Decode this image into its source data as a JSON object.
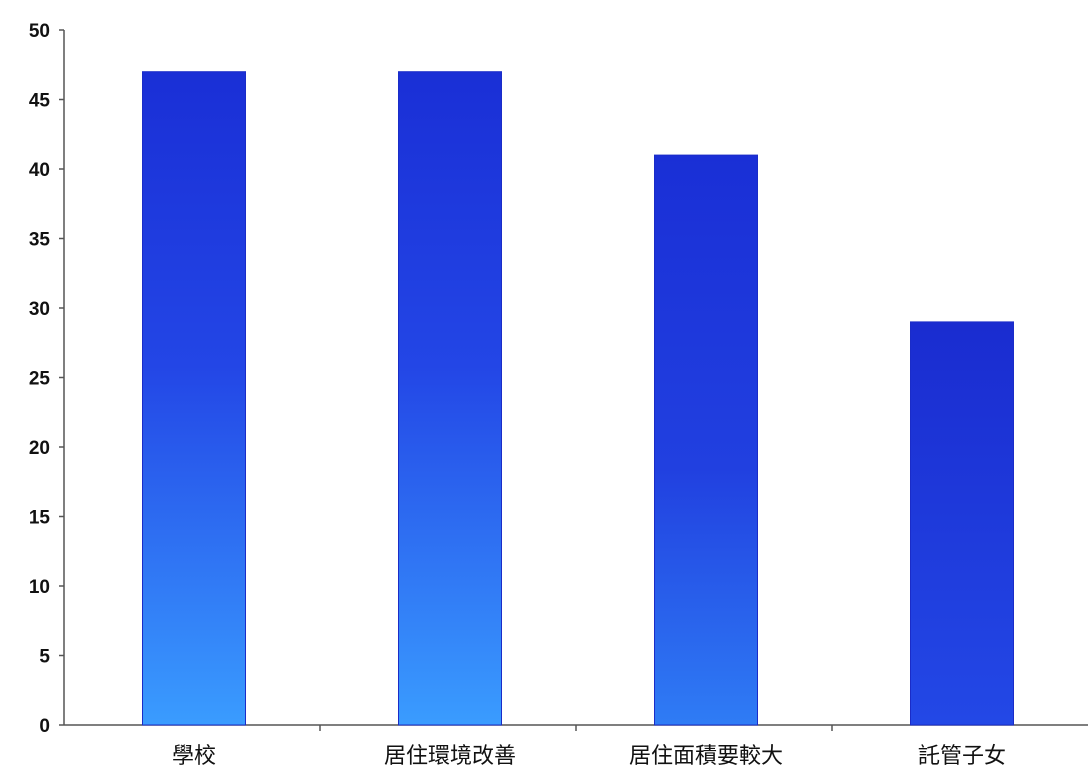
{
  "chart_data": {
    "type": "bar",
    "title": "",
    "xlabel": "",
    "ylabel": "",
    "categories": [
      "學校",
      "居住環境改善",
      "居住面積要較大",
      "託管子女"
    ],
    "values": [
      47,
      47,
      41,
      29
    ],
    "ylim": [
      0,
      50
    ],
    "yticks": [
      0,
      5,
      10,
      15,
      20,
      25,
      30,
      35,
      40,
      45,
      50
    ],
    "grid": false,
    "legend": "none",
    "colors": {
      "bar_dark": "#1a2fd6",
      "bar_mid": "#2750e8",
      "bar_light": "#3aa0ff",
      "axis": "#555555",
      "text": "#111111"
    }
  }
}
